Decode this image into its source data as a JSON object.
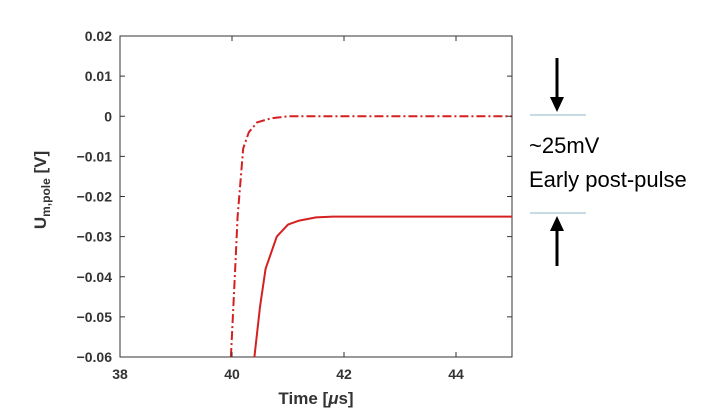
{
  "chart_data": {
    "type": "line",
    "x_label": "Time [",
    "x_label_unit_symbol": "μ",
    "x_label_unit_rest": "s]",
    "y_label_main": "U",
    "y_label_sub": "m,pole",
    "y_label_unit": " [V]",
    "xlim": [
      38,
      45
    ],
    "ylim": [
      -0.06,
      0.02
    ],
    "x_ticks": [
      "38",
      "40",
      "42",
      "44"
    ],
    "x_tick_values": [
      38,
      40,
      42,
      44
    ],
    "y_ticks": [
      "0.02",
      "0.01",
      "0",
      "−0.01",
      "−0.02",
      "−0.03",
      "−0.04",
      "−0.05",
      "−0.06"
    ],
    "y_tick_values": [
      0.02,
      0.01,
      0,
      -0.01,
      -0.02,
      -0.03,
      -0.04,
      -0.05,
      -0.06
    ],
    "grid": false,
    "series": [
      {
        "style": "dash-dot",
        "color": "#d42020",
        "x": [
          39.98,
          40.05,
          40.1,
          40.2,
          40.3,
          40.45,
          40.7,
          41.0,
          41.5,
          42.0,
          43.0,
          44.0,
          45.0
        ],
        "y": [
          -0.06,
          -0.04,
          -0.025,
          -0.008,
          -0.004,
          -0.0015,
          -0.0005,
          0.0,
          0.0,
          0.0,
          0.0,
          0.0,
          0.0
        ]
      },
      {
        "style": "solid",
        "color": "#d42020",
        "x": [
          40.4,
          40.5,
          40.6,
          40.8,
          41.0,
          41.2,
          41.5,
          41.8,
          42.0,
          43.0,
          44.0,
          45.0
        ],
        "y": [
          -0.06,
          -0.0475,
          -0.038,
          -0.03,
          -0.027,
          -0.026,
          -0.0252,
          -0.025,
          -0.025,
          -0.025,
          -0.025,
          -0.025
        ]
      }
    ]
  },
  "annotation": {
    "line1": "~25mV",
    "line2": "Early post-pulse",
    "arrow_color": "#000000",
    "marker_color": "#8fb8c4"
  }
}
